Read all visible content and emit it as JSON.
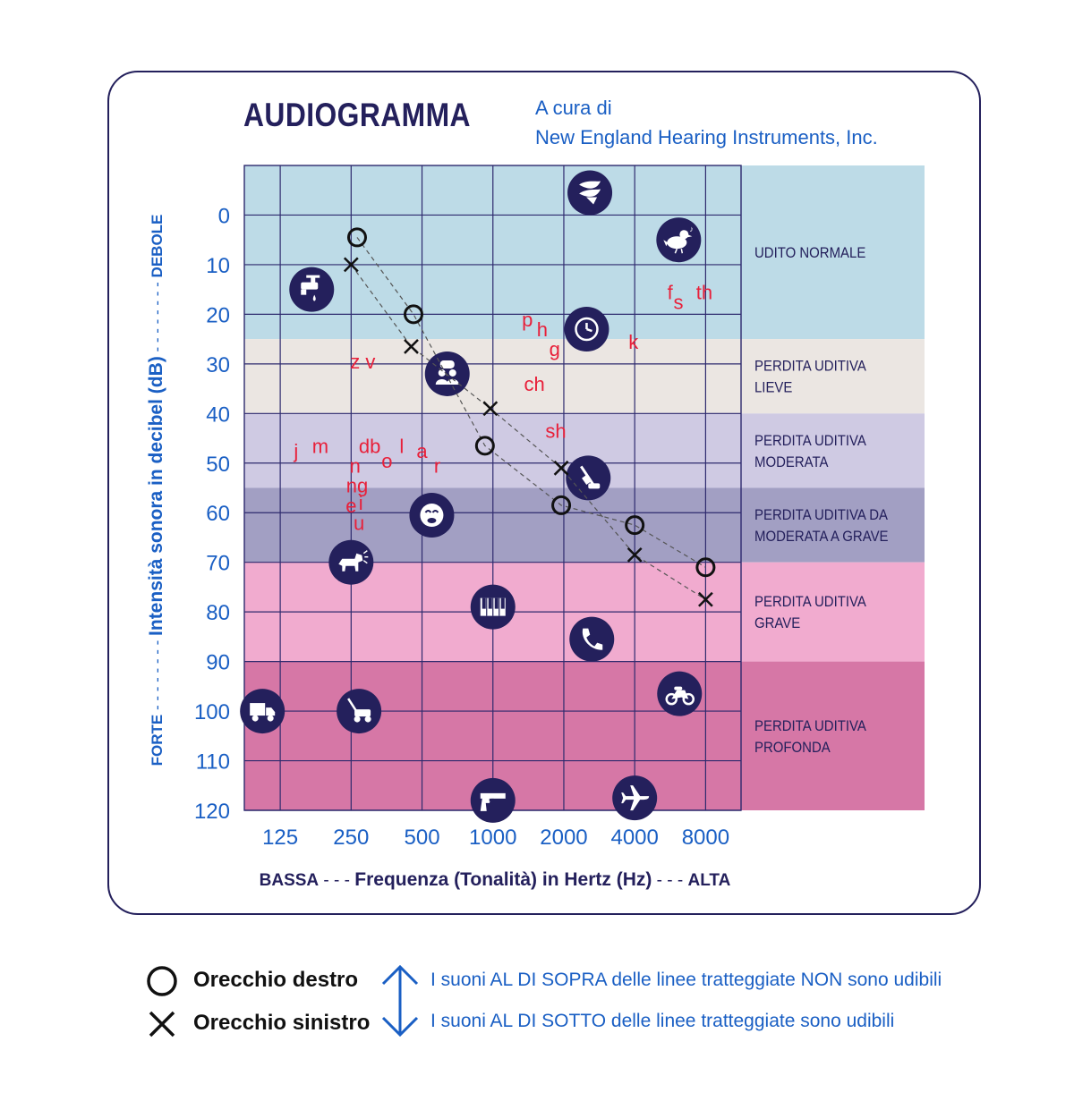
{
  "title": "AUDIOGRAMMA",
  "subtitle_line1": "A cura di",
  "subtitle_line2": "New England Hearing Instruments, Inc.",
  "colors": {
    "navy": "#24205c",
    "blue": "#1a5fc4",
    "red": "#e8203a",
    "band_normal": "#bddbe7",
    "band_mild": "#ebe6e2",
    "band_moderate": "#cfcae3",
    "band_mod_severe": "#a29fc3",
    "band_severe": "#f1abcf",
    "band_profound": "#d677a6"
  },
  "chart_data": {
    "type": "scatter",
    "title": "AUDIOGRAMMA",
    "xlabel": "Frequenza (Tonalità) in Hertz (Hz)",
    "xlabel_left": "BASSA",
    "xlabel_right": "ALTA",
    "ylabel": "Intensità sonora in decibel (dB)",
    "ylabel_top": "DEBOLE",
    "ylabel_bottom": "FORTE",
    "x_scale": "log2",
    "x_ticks": [
      125,
      250,
      500,
      1000,
      2000,
      4000,
      8000
    ],
    "x_tick_labels": [
      "125",
      "250",
      "500",
      "1000",
      "2000",
      "4000",
      "8000"
    ],
    "y_reversed": true,
    "y_ticks": [
      0,
      10,
      20,
      30,
      40,
      50,
      60,
      70,
      80,
      90,
      100,
      110,
      120
    ],
    "y_tick_labels": [
      "0",
      "10",
      "20",
      "30",
      "40",
      "50",
      "60",
      "70",
      "80",
      "90",
      "100",
      "110",
      "120"
    ],
    "ylim": [
      -10,
      120
    ],
    "xlim": [
      88,
      11314
    ],
    "grid": true,
    "bands": [
      {
        "label": "UDITO NORMALE",
        "from": -10,
        "to": 25,
        "color": "#bddbe7"
      },
      {
        "label": "PERDITA UDITIVA LIEVE",
        "from": 25,
        "to": 40,
        "color": "#ebe6e2"
      },
      {
        "label": "PERDITA UDITIVA MODERATA",
        "from": 40,
        "to": 55,
        "color": "#cfcae3"
      },
      {
        "label": "PERDITA UDITIVA DA MODERATA A GRAVE",
        "from": 55,
        "to": 70,
        "color": "#a29fc3"
      },
      {
        "label": "PERDITA UDITIVA GRAVE",
        "from": 70,
        "to": 90,
        "color": "#f1abcf"
      },
      {
        "label": "PERDITA UDITIVA PROFONDA",
        "from": 90,
        "to": 120,
        "color": "#d677a6"
      }
    ],
    "series": [
      {
        "name": "Orecchio destro",
        "marker": "circle",
        "x": [
          265,
          460,
          925,
          1950,
          4000,
          8000
        ],
        "y": [
          4.5,
          20,
          46.5,
          58.5,
          62.5,
          71
        ]
      },
      {
        "name": "Orecchio sinistro",
        "marker": "x",
        "x": [
          250,
          450,
          975,
          1950,
          4000,
          8000
        ],
        "y": [
          10,
          26.5,
          39,
          51,
          68.5,
          77.5
        ]
      }
    ],
    "phonemes": [
      {
        "text": "p",
        "x": 1400,
        "y": 21
      },
      {
        "text": "h",
        "x": 1620,
        "y": 23
      },
      {
        "text": "g",
        "x": 1830,
        "y": 27
      },
      {
        "text": "k",
        "x": 3950,
        "y": 25.5
      },
      {
        "text": "f",
        "x": 5650,
        "y": 15.5
      },
      {
        "text": "s",
        "x": 6130,
        "y": 17.5
      },
      {
        "text": "th",
        "x": 7900,
        "y": 15.5
      },
      {
        "text": "z v",
        "x": 280,
        "y": 29.5
      },
      {
        "text": "ch",
        "x": 1500,
        "y": 34
      },
      {
        "text": "sh",
        "x": 1850,
        "y": 43.5
      },
      {
        "text": "j",
        "x": 146,
        "y": 47.5
      },
      {
        "text": "m",
        "x": 185,
        "y": 46.5
      },
      {
        "text": "db",
        "x": 300,
        "y": 46.5
      },
      {
        "text": "l",
        "x": 410,
        "y": 46.5
      },
      {
        "text": "a",
        "x": 500,
        "y": 47.5
      },
      {
        "text": "o",
        "x": 355,
        "y": 49.5
      },
      {
        "text": "r",
        "x": 580,
        "y": 50.5
      },
      {
        "text": "n",
        "x": 260,
        "y": 50.5
      },
      {
        "text": "ng",
        "x": 265,
        "y": 54.5
      },
      {
        "text": "e",
        "x": 250,
        "y": 58.5
      },
      {
        "text": "i",
        "x": 275,
        "y": 58
      },
      {
        "text": "u",
        "x": 270,
        "y": 62
      }
    ],
    "sound_icons": [
      {
        "icon": "leaves-icon",
        "x": 2580,
        "y": -4.5
      },
      {
        "icon": "bird-icon",
        "x": 6150,
        "y": 5
      },
      {
        "icon": "dripping-faucet-icon",
        "x": 170,
        "y": 15
      },
      {
        "icon": "clock-icon",
        "x": 2500,
        "y": 23
      },
      {
        "icon": "people-talking-icon",
        "x": 640,
        "y": 32
      },
      {
        "icon": "vacuum-cleaner-icon",
        "x": 2540,
        "y": 53
      },
      {
        "icon": "crying-baby-icon",
        "x": 550,
        "y": 60.5
      },
      {
        "icon": "barking-dog-icon",
        "x": 250,
        "y": 70
      },
      {
        "icon": "piano-icon",
        "x": 1000,
        "y": 79
      },
      {
        "icon": "telephone-icon",
        "x": 2630,
        "y": 85.5
      },
      {
        "icon": "motorcycle-icon",
        "x": 6200,
        "y": 96.5
      },
      {
        "icon": "truck-icon",
        "x": 105,
        "y": 100
      },
      {
        "icon": "lawn-mower-icon",
        "x": 270,
        "y": 100
      },
      {
        "icon": "gun-icon",
        "x": 1000,
        "y": 118
      },
      {
        "icon": "airplane-icon",
        "x": 4000,
        "y": 117.5
      }
    ]
  },
  "legend": {
    "right_ear": "Orecchio destro",
    "left_ear": "Orecchio sinistro",
    "above_note": "I suoni AL DI SOPRA delle linee tratteggiate NON sono udibili",
    "below_note": "I suoni AL DI SOTTO delle linee tratteggiate sono udibili"
  }
}
